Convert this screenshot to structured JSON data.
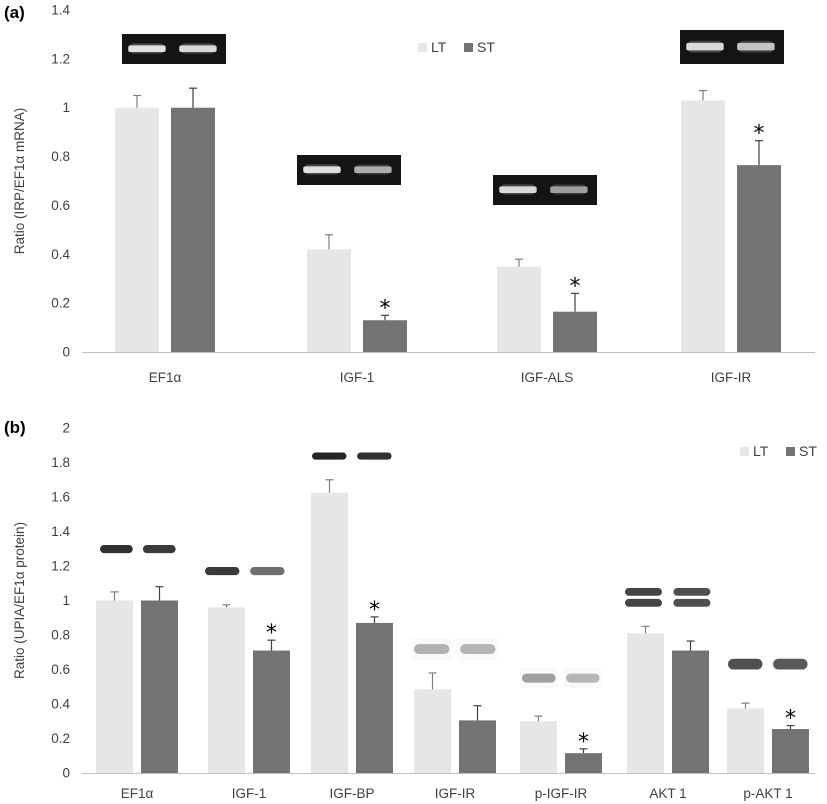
{
  "colors": {
    "LT": "#e6e6e6",
    "ST": "#737373",
    "axis": "#bfbfbf",
    "grid": "#d9d9d9",
    "text": "#404040"
  },
  "chart_data": [
    {
      "type": "bar",
      "panel_label": "(a)",
      "ylabel": "Ratio (IRP/EF1α mRNA)",
      "ylim": [
        0,
        1.4
      ],
      "yticks": [
        "0",
        "0.2",
        "0.4",
        "0.6",
        "0.8",
        "1",
        "1.2",
        "1.4"
      ],
      "categories": [
        "EF1α",
        "IGF-1",
        "IGF-ALS",
        "IGF-IR"
      ],
      "legend": [
        "LT",
        "ST"
      ],
      "legend_position": "top-center",
      "series": [
        {
          "name": "LT",
          "values": [
            1.0,
            0.42,
            0.35,
            1.03
          ],
          "errors": [
            0.05,
            0.06,
            0.03,
            0.04
          ]
        },
        {
          "name": "ST",
          "values": [
            1.0,
            0.13,
            0.165,
            0.765
          ],
          "errors": [
            0.08,
            0.02,
            0.075,
            0.1
          ]
        }
      ],
      "significance": [
        null,
        "*",
        "*",
        "*"
      ],
      "gel_images": "RT-PCR band images above each category"
    },
    {
      "type": "bar",
      "panel_label": "(b)",
      "ylabel": "Ratio (UPIA/EF1α protein)",
      "ylim": [
        0,
        2
      ],
      "yticks": [
        "0",
        "0.2",
        "0.4",
        "0.6",
        "0.8",
        "1",
        "1.2",
        "1.4",
        "1.6",
        "1.8",
        "2"
      ],
      "categories": [
        "EF1α",
        "IGF-1",
        "IGF-BP",
        "IGF-IR",
        "p-IGF-IR",
        "AKT 1",
        "p-AKT 1"
      ],
      "legend": [
        "LT",
        "ST"
      ],
      "legend_position": "top-right",
      "series": [
        {
          "name": "LT",
          "values": [
            1.0,
            0.96,
            1.625,
            0.485,
            0.3,
            0.81,
            0.375
          ],
          "errors": [
            0.05,
            0.015,
            0.075,
            0.095,
            0.03,
            0.04,
            0.03
          ]
        },
        {
          "name": "ST",
          "values": [
            1.0,
            0.71,
            0.87,
            0.305,
            0.115,
            0.71,
            0.255
          ],
          "errors": [
            0.08,
            0.06,
            0.035,
            0.085,
            0.025,
            0.055,
            0.02
          ]
        }
      ],
      "significance": [
        null,
        "*",
        "*",
        null,
        "*",
        null,
        "*"
      ],
      "blot_images": "Western blot band images above each category"
    }
  ]
}
